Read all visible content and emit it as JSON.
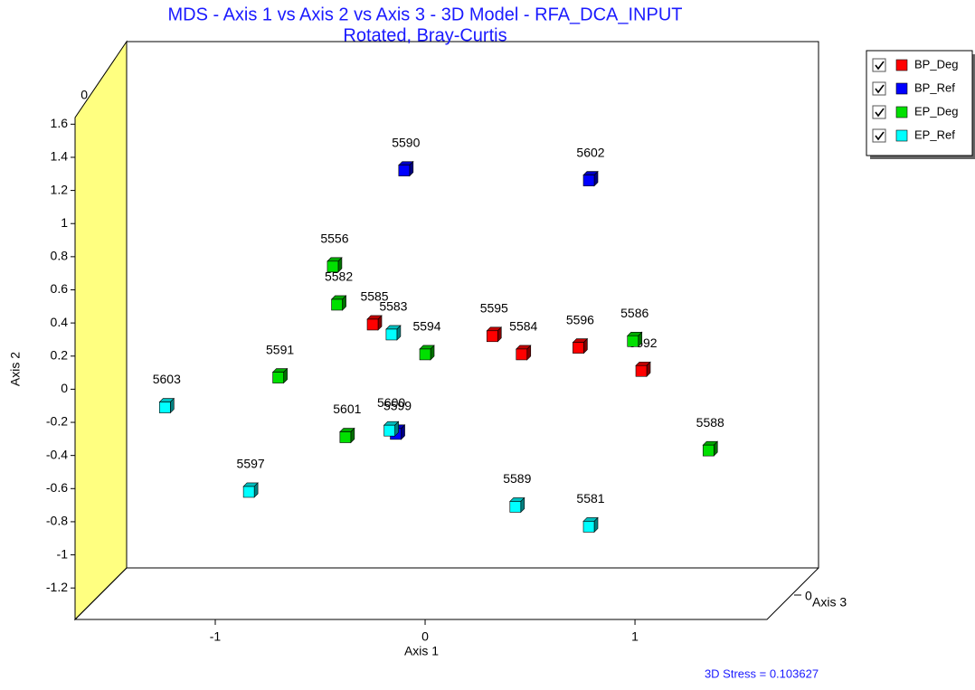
{
  "chart_data": {
    "type": "scatter3d",
    "title": "MDS - Axis 1 vs Axis 2 vs Axis 3 - 3D Model - RFA_DCA_INPUT",
    "subtitle": "Rotated,  Bray-Curtis",
    "xlabel": "Axis 1",
    "ylabel": "Axis 2",
    "zlabel": "Axis 3",
    "xlim": [
      -1.668,
      1.629
    ],
    "xticks": [
      -1,
      0,
      1
    ],
    "ylim": [
      -1.39,
      1.64
    ],
    "yticks": [
      -1.2,
      -1,
      -0.8,
      -0.6,
      -0.4,
      -0.2,
      0,
      0.2,
      0.4,
      0.6,
      0.8,
      1,
      1.2,
      1.4,
      1.6
    ],
    "zticks": [
      0
    ],
    "annotation": "3D Stress = 0.103627",
    "legend": "top-right",
    "series": [
      {
        "name": "BP_Deg",
        "color": "#ff0000",
        "labels": [
          "5585",
          "5595",
          "5584",
          "5596",
          "5592"
        ],
        "x": [
          -0.25,
          0.32,
          0.46,
          0.73,
          1.03
        ],
        "values": [
          0.39,
          0.32,
          0.21,
          0.25,
          0.11
        ]
      },
      {
        "name": "BP_Ref",
        "color": "#0000ff",
        "labels": [
          "5590",
          "5602",
          "5599"
        ],
        "x": [
          -0.1,
          0.78,
          -0.14
        ],
        "values": [
          1.32,
          1.26,
          -0.27
        ]
      },
      {
        "name": "EP_Deg",
        "color": "#00e000",
        "labels": [
          "5556",
          "5582",
          "5594",
          "5591",
          "5601",
          "5586",
          "5588"
        ],
        "x": [
          -0.44,
          -0.42,
          0.0,
          -0.7,
          -0.38,
          0.99,
          1.35
        ],
        "values": [
          0.74,
          0.51,
          0.21,
          0.07,
          -0.29,
          0.29,
          -0.37
        ]
      },
      {
        "name": "EP_Ref",
        "color": "#00ffff",
        "labels": [
          "5583",
          "5603",
          "5600",
          "5597",
          "5589",
          "5581"
        ],
        "x": [
          -0.16,
          -1.24,
          -0.17,
          -0.84,
          0.43,
          0.78
        ],
        "values": [
          0.33,
          -0.11,
          -0.25,
          -0.62,
          -0.71,
          -0.83
        ]
      }
    ]
  }
}
